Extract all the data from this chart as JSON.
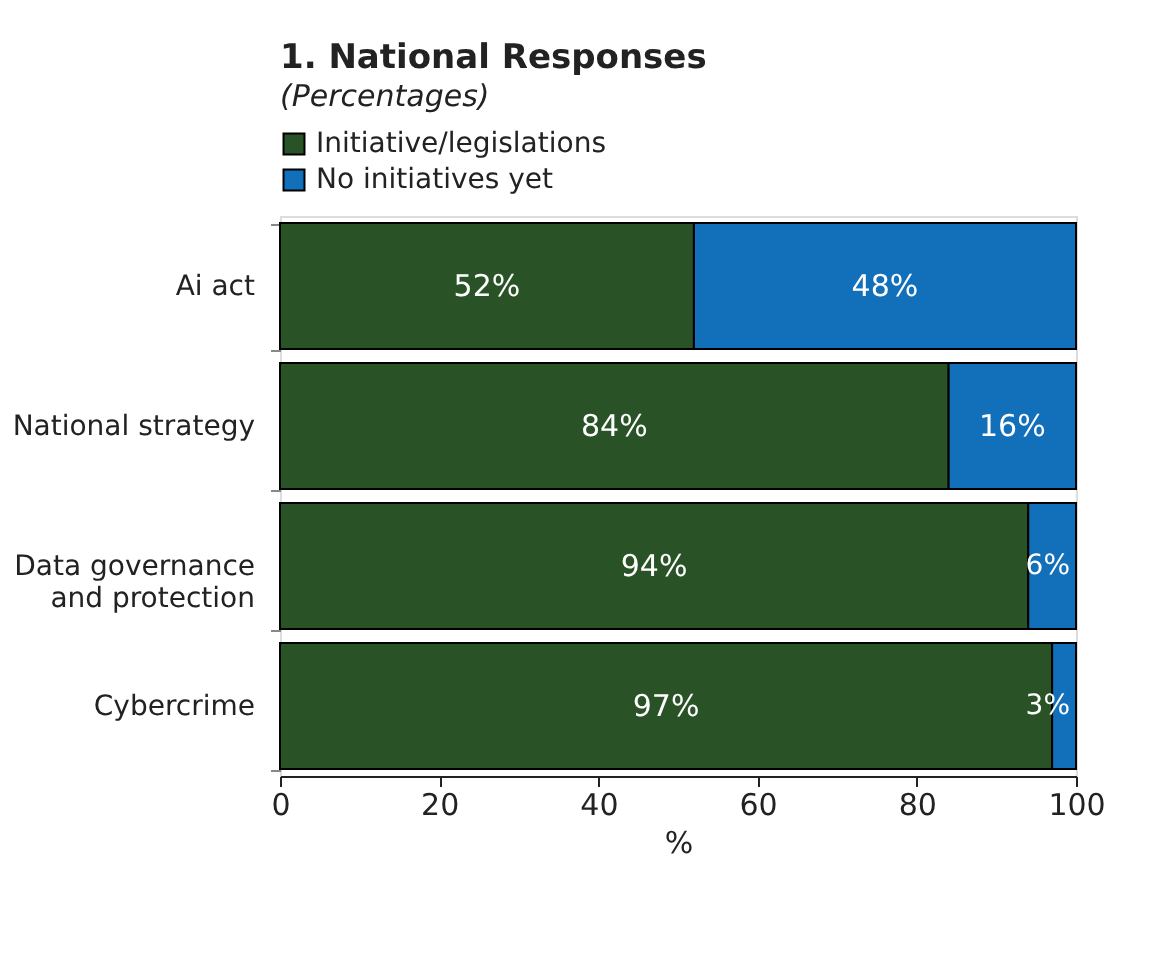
{
  "chart_data": {
    "type": "bar",
    "orientation": "horizontal",
    "stacked": true,
    "title": "1. National Responses",
    "subtitle": "(Percentages)",
    "xlabel": "%",
    "categories": [
      "Ai act",
      "National strategy",
      "Data governance\nand protection",
      "Cybercrime"
    ],
    "series": [
      {
        "name": "Initiative/legislations",
        "color": "#295227",
        "values": [
          52,
          84,
          94,
          97
        ],
        "value_labels": [
          "52%",
          "84%",
          "94%",
          "97%"
        ]
      },
      {
        "name": "No initiatives yet",
        "color": "#126fba",
        "values": [
          48,
          16,
          6,
          3
        ],
        "value_labels": [
          "48%",
          "16%",
          "6%",
          "3%"
        ]
      }
    ],
    "xlim": [
      0,
      100
    ],
    "xticks": [
      0,
      20,
      40,
      60,
      80,
      100
    ],
    "grid": false,
    "legend": "top left"
  }
}
